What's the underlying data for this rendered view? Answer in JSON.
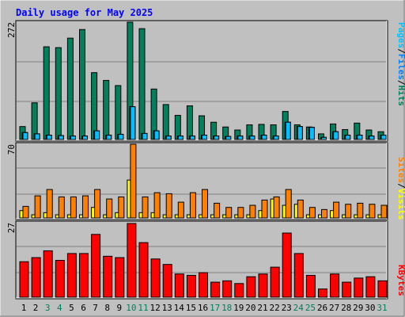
{
  "title": "Daily usage for May 2025",
  "colors": {
    "background": "#c0c0c0",
    "title": "#0000ff",
    "hits": "#00805c",
    "files": "#0080ff",
    "pages": "#00c0ff",
    "visits": "#ff8000",
    "sites": "#ffff00",
    "kbytes": "#ff0000",
    "weekend_label": "#00805c",
    "weekday_label": "#000000"
  },
  "chart_data": {
    "type": "bar",
    "categories": [
      "1",
      "2",
      "3",
      "4",
      "5",
      "6",
      "7",
      "8",
      "9",
      "10",
      "11",
      "12",
      "13",
      "14",
      "15",
      "16",
      "17",
      "18",
      "19",
      "20",
      "21",
      "22",
      "23",
      "24",
      "25",
      "26",
      "27",
      "28",
      "29",
      "30",
      "31"
    ],
    "weekend_days": [
      "3",
      "4",
      "10",
      "11",
      "17",
      "18",
      "24",
      "25",
      "31"
    ],
    "panels": [
      {
        "id": "top",
        "ymax_label": "272",
        "ylim": [
          0,
          272
        ],
        "legend": [
          "Pages",
          "/",
          "Files",
          "/",
          "Hits"
        ],
        "series": [
          {
            "name": "Hits",
            "values": [
              30,
              85,
              215,
              213,
              235,
              255,
              155,
              137,
              125,
              272,
              257,
              117,
              81,
              56,
              78,
              55,
              40,
              29,
              22,
              34,
              35,
              34,
              65,
              34,
              29,
              13,
              36,
              23,
              38,
              22,
              18
            ]
          },
          {
            "name": "Files",
            "values": [
              16,
              13,
              10,
              9,
              8,
              8,
              20,
              10,
              12,
              76,
              14,
              20,
              8,
              8,
              8,
              10,
              8,
              7,
              8,
              8,
              10,
              8,
              40,
              30,
              28,
              5,
              18,
              10,
              10,
              8,
              10
            ]
          },
          {
            "name": "Pages",
            "values": [
              16,
              13,
              10,
              9,
              8,
              8,
              20,
              10,
              12,
              76,
              14,
              20,
              8,
              8,
              8,
              10,
              8,
              7,
              8,
              8,
              10,
              8,
              40,
              30,
              28,
              5,
              18,
              10,
              10,
              8,
              10
            ]
          }
        ]
      },
      {
        "id": "middle",
        "ymax_label": "70",
        "ylim": [
          0,
          70
        ],
        "legend": [
          "Sites",
          "/",
          "Visits"
        ],
        "series": [
          {
            "name": "Visits",
            "values": [
              11,
              21,
              27,
              20,
              20,
              21,
              27,
              18,
              20,
              70,
              20,
              24,
              23,
              15,
              24,
              27,
              14,
              10,
              10,
              12,
              17,
              20,
              27,
              17,
              10,
              8,
              15,
              13,
              14,
              13,
              12
            ]
          },
          {
            "name": "Sites",
            "values": [
              7,
              3,
              5,
              3,
              3,
              3,
              10,
              3,
              5,
              36,
              5,
              5,
              3,
              3,
              3,
              3,
              3,
              3,
              3,
              3,
              7,
              18,
              12,
              13,
              3,
              3,
              7,
              3,
              3,
              3,
              3
            ]
          }
        ]
      },
      {
        "id": "bottom",
        "ymax_label": "27",
        "ylim": [
          0,
          27
        ],
        "legend": [
          "KBytes"
        ],
        "series": [
          {
            "name": "KBytes",
            "values": [
              13,
              14.5,
              17,
              13.5,
              16,
              16,
              23,
              15,
              14.5,
              27,
              20,
              14,
              12,
              8.5,
              8,
              9,
              5.5,
              6,
              5,
              7.5,
              8.5,
              11,
              23.5,
              16,
              8,
              3,
              8.5,
              5.5,
              7,
              7.5,
              6
            ]
          }
        ]
      }
    ]
  }
}
